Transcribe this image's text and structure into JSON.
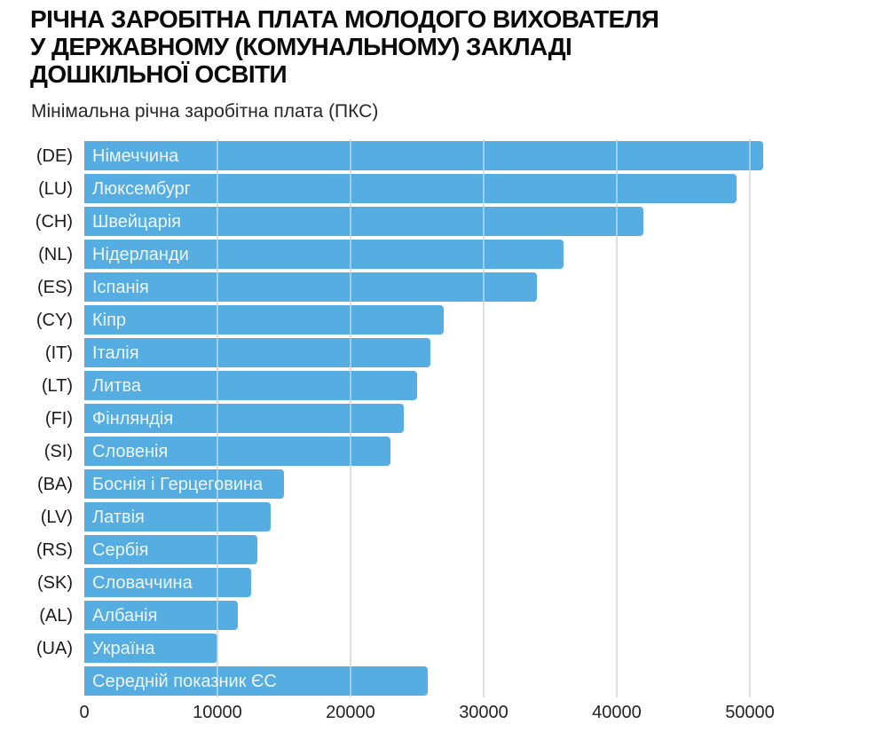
{
  "header": {
    "title_lines": [
      "РІЧНА ЗАРОБІТНА ПЛАТА МОЛОДОГО ВИХОВАТЕЛЯ",
      "У ДЕРЖАВНОМУ (КОМУНАЛЬНОМУ) ЗАКЛАДІ",
      "ДОШКІЛЬНОЇ ОСВІТИ"
    ],
    "subtitle": "Мінімальна річна заробітна плата (ПКС)"
  },
  "chart_data": {
    "type": "bar",
    "orientation": "horizontal",
    "title": "Річна заробітна плата молодого вихователя у державному (комунальному) закладі дошкільної освіти",
    "subtitle": "Мінімальна річна заробітна плата (ПКС)",
    "unit": "ПКС",
    "xlabel": "",
    "ylabel": "",
    "xlim": [
      0,
      60000
    ],
    "xticks": [
      0,
      10000,
      20000,
      30000,
      40000,
      50000
    ],
    "xtick_labels": [
      "0",
      "10000",
      "20000",
      "30000",
      "40000",
      "50000"
    ],
    "grid": true,
    "legend": "none",
    "bar_color": "#55ADE1",
    "bar_label_color": "#EDF6FC",
    "grid_color": "#C6C6C6",
    "rows": [
      {
        "code": "(DE)",
        "name": "Німеччина",
        "value": 51000
      },
      {
        "code": "(LU)",
        "name": "Люксембург",
        "value": 49000
      },
      {
        "code": "(CH)",
        "name": "Швейцарія",
        "value": 42000
      },
      {
        "code": "(NL)",
        "name": "Нідерланди",
        "value": 36000
      },
      {
        "code": "(ES)",
        "name": "Іспанія",
        "value": 34000
      },
      {
        "code": "(CY)",
        "name": "Кіпр",
        "value": 27000
      },
      {
        "code": "(IT)",
        "name": "Італія",
        "value": 26000
      },
      {
        "code": "(LT)",
        "name": "Литва",
        "value": 25000
      },
      {
        "code": "(FI)",
        "name": "Фінляндія",
        "value": 24000
      },
      {
        "code": "(SI)",
        "name": "Словенія",
        "value": 23000
      },
      {
        "code": "(BA)",
        "name": "Боснія і Герцеговина",
        "value": 15000
      },
      {
        "code": "(LV)",
        "name": "Латвія",
        "value": 14000
      },
      {
        "code": "(RS)",
        "name": "Сербія",
        "value": 13000
      },
      {
        "code": "(SK)",
        "name": "Словаччина",
        "value": 12500
      },
      {
        "code": "(AL)",
        "name": "Албанія",
        "value": 11500
      },
      {
        "code": "(UA)",
        "name": "Україна",
        "value": 10000
      },
      {
        "code": "",
        "name": "Середній показник ЄС",
        "value": 25800
      }
    ]
  }
}
